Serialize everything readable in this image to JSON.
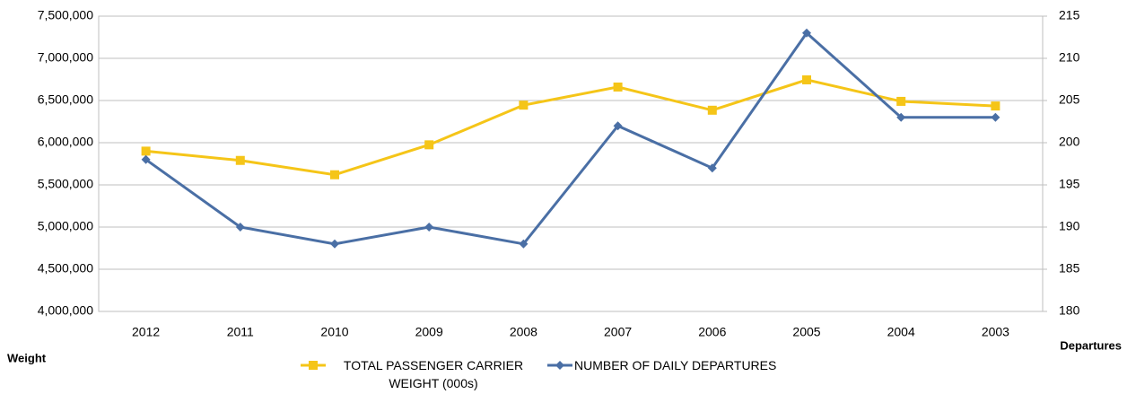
{
  "chart_data": {
    "type": "line",
    "categories": [
      "2012",
      "2011",
      "2010",
      "2009",
      "2008",
      "2007",
      "2006",
      "2005",
      "2004",
      "2003"
    ],
    "series": [
      {
        "name": "TOTAL PASSENGER CARRIER WEIGHT (000s)",
        "color": "#f5c518",
        "marker": "square",
        "values": [
          5900000,
          5790000,
          5620000,
          5975000,
          6445000,
          6660000,
          6385000,
          6745000,
          6490000,
          6435000
        ]
      },
      {
        "name": "NUMBER OF DAILY DEPARTURES",
        "color": "#4a6fa5",
        "marker": "diamond",
        "axis": "y2",
        "values": [
          198,
          190,
          188,
          190,
          188,
          202,
          197,
          213,
          203,
          203
        ]
      }
    ],
    "ylabel": "Weight",
    "y2label": "Departures",
    "ylim": [
      4000000,
      7500000
    ],
    "yticks": [
      {
        "value": 4000000,
        "label": "4,000,000"
      },
      {
        "value": 4500000,
        "label": "4,500,000"
      },
      {
        "value": 5000000,
        "label": "5,000,000"
      },
      {
        "value": 5500000,
        "label": "5,500,000"
      },
      {
        "value": 6000000,
        "label": "6,000,000"
      },
      {
        "value": 6500000,
        "label": "6,500,000"
      },
      {
        "value": 7000000,
        "label": "7,000,000"
      },
      {
        "value": 7500000,
        "label": "7,500,000"
      }
    ],
    "y2lim": [
      180,
      215
    ],
    "y2ticks": [
      180,
      185,
      190,
      195,
      200,
      205,
      210,
      215
    ],
    "grid": true
  }
}
